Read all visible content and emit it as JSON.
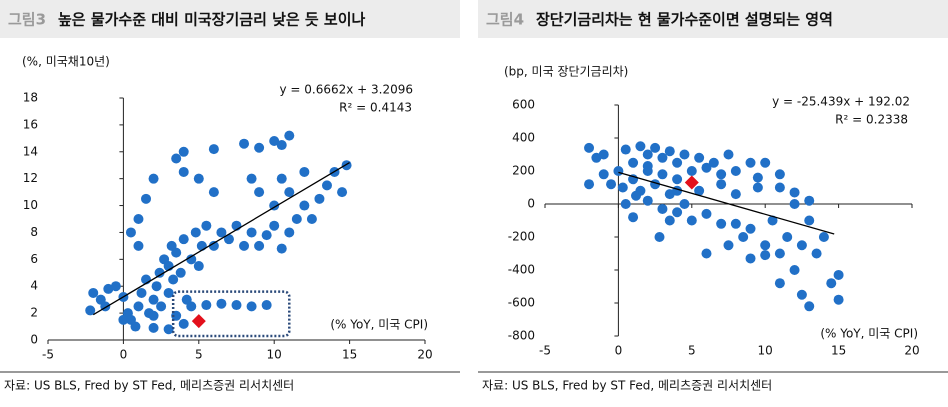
{
  "chart_data": [
    {
      "type": "scatter",
      "figure_label": "그림3",
      "title": "높은 물가수준 대비 미국장기금리 낮은 듯 보이나",
      "y_label": "(%, 미국채10년)",
      "x_label": "(% YoY, 미국 CPI)",
      "equation": "y = 0.6662x + 3.2096",
      "r_squared": "R² = 0.4143",
      "source": "자료: US BLS, Fred by ST Fed, 메리츠증권 리서치센터",
      "xlim": [
        -5,
        20
      ],
      "xticks": [
        -5,
        0,
        5,
        10,
        15,
        20
      ],
      "ylim": [
        0,
        18
      ],
      "yticks": [
        0,
        2,
        4,
        6,
        8,
        10,
        12,
        14,
        16,
        18
      ],
      "color": "#2170c7",
      "x": [
        -2,
        -1.5,
        -1.2,
        -1,
        -0.5,
        0,
        0.3,
        0.5,
        0.8,
        1,
        1.2,
        1.5,
        1.7,
        2,
        2,
        2.2,
        2.4,
        2.5,
        2.7,
        3,
        3,
        3.2,
        3.3,
        3.5,
        3.5,
        3.8,
        4,
        4.2,
        4.5,
        4.8,
        5,
        5.2,
        5.5,
        6,
        6.5,
        7,
        7.5,
        8,
        8.5,
        9,
        9.5,
        10,
        10.5,
        11,
        11.5,
        12,
        12.5,
        13,
        13.5,
        14,
        14.5,
        14.8,
        10,
        11,
        9,
        8.5,
        10.5,
        12,
        6,
        5,
        4,
        3.5,
        2,
        1.5,
        1,
        0.5,
        1,
        4,
        6,
        8,
        9,
        10,
        11,
        10.5,
        4.5,
        5.5,
        6.5,
        7.5,
        8.5,
        9.5,
        4,
        3,
        2,
        -2.2,
        0
      ],
      "y": [
        3.5,
        3,
        2.5,
        3.8,
        4,
        3.2,
        2,
        1.5,
        1,
        2.5,
        3.5,
        4.5,
        2,
        1.8,
        3,
        4,
        5,
        2.5,
        6,
        3.5,
        5.5,
        7,
        4.5,
        6.5,
        1.8,
        5,
        7.5,
        3,
        6,
        8,
        5.5,
        7,
        8.5,
        7,
        8,
        7.5,
        8.5,
        7,
        8,
        7,
        7.8,
        8.5,
        6.8,
        8,
        9,
        10,
        9,
        10.5,
        11.5,
        12.5,
        11,
        13,
        10,
        11,
        11,
        12,
        12,
        12.5,
        11,
        12,
        12.5,
        13.5,
        12,
        10.5,
        9,
        8,
        7,
        14,
        14.2,
        14.6,
        14.3,
        14.8,
        15.2,
        14.5,
        2.5,
        2.6,
        2.7,
        2.6,
        2.5,
        2.6,
        1.2,
        0.8,
        0.9,
        2.2,
        1.5
      ],
      "trend_line": {
        "x": [
          -2,
          15
        ],
        "y": [
          1.88,
          13.2
        ],
        "color": "#000000"
      },
      "current_point": {
        "x": 5,
        "y": 1.4,
        "color": "#e3101b"
      },
      "highlight_box": {
        "x": [
          3.3,
          11
        ],
        "y": [
          0.3,
          3.6
        ],
        "color": "#2b4a7a"
      }
    },
    {
      "type": "scatter",
      "figure_label": "그림4",
      "title": "장단기금리차는 현 물가수준이면 설명되는 영역",
      "y_label": "(bp, 미국 장단기금리차)",
      "x_label": "(% YoY, 미국 CPI)",
      "equation": "y = -25.439x + 192.02",
      "r_squared": "R² = 0.2338",
      "source": "자료: US BLS, Fred by ST Fed, 메리츠증권 리서치센터",
      "xlim": [
        -5,
        20
      ],
      "xticks": [
        -5,
        0,
        5,
        10,
        15,
        20
      ],
      "ylim": [
        -800,
        600
      ],
      "yticks": [
        -800,
        -600,
        -400,
        -200,
        0,
        200,
        400,
        600
      ],
      "color": "#2170c7",
      "x": [
        -2,
        -1.5,
        -1,
        -0.5,
        -2,
        0,
        0.5,
        1,
        1,
        1.5,
        1.5,
        2,
        2,
        2,
        2.5,
        2.5,
        3,
        3,
        3,
        3.5,
        3.5,
        4,
        4,
        4,
        4.5,
        4.5,
        5,
        5,
        5.5,
        5.5,
        6,
        6,
        6.5,
        7,
        7,
        7.5,
        8,
        8,
        8.5,
        9,
        9,
        9.5,
        10,
        10,
        10.5,
        11,
        11,
        11.5,
        12,
        12,
        12.5,
        12.5,
        13,
        13,
        13.5,
        14,
        14.5,
        15,
        15,
        11,
        10,
        9,
        8,
        0.5,
        1,
        3.5,
        -1,
        0.3,
        2.8,
        6,
        7.5,
        12,
        13,
        9.5,
        11,
        7,
        4,
        2,
        1.2
      ],
      "y": [
        340,
        280,
        300,
        120,
        120,
        200,
        330,
        250,
        150,
        350,
        80,
        300,
        200,
        20,
        340,
        120,
        280,
        -30,
        180,
        320,
        60,
        250,
        -50,
        150,
        300,
        0,
        200,
        -100,
        280,
        80,
        220,
        -60,
        250,
        180,
        -120,
        300,
        200,
        60,
        -200,
        250,
        -150,
        100,
        -250,
        250,
        -100,
        -300,
        100,
        -200,
        -400,
        0,
        -550,
        -250,
        -620,
        -100,
        -300,
        -200,
        -480,
        -430,
        -580,
        -480,
        -310,
        -330,
        -120,
        0,
        -80,
        -100,
        180,
        100,
        -200,
        -300,
        -250,
        70,
        20,
        160,
        180,
        120,
        80,
        230,
        50
      ],
      "trend_line": {
        "x": [
          0,
          14.7
        ],
        "y": [
          192,
          -182
        ],
        "color": "#000000"
      },
      "current_point": {
        "x": 5,
        "y": 130,
        "color": "#e3101b"
      }
    }
  ]
}
